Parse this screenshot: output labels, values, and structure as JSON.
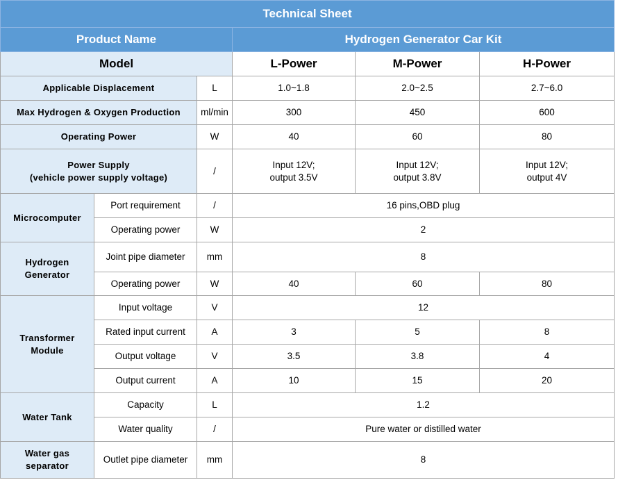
{
  "title": "Technical Sheet",
  "product": {
    "label": "Product Name",
    "value": "Hydrogen Generator Car Kit"
  },
  "model": {
    "label": "Model",
    "variants": [
      "L-Power",
      "M-Power",
      "H-Power"
    ]
  },
  "rows": [
    {
      "label": "Applicable Displacement",
      "unit": "L",
      "values": [
        "1.0~1.8",
        "2.0~2.5",
        "2.7~6.0"
      ]
    },
    {
      "label": "Max Hydrogen & Oxygen Production",
      "unit": "ml/min",
      "values": [
        "300",
        "450",
        "600"
      ]
    },
    {
      "label": "Operating Power",
      "unit": "W",
      "values": [
        "40",
        "60",
        "80"
      ]
    },
    {
      "label": "Power Supply\n(vehicle power supply voltage)",
      "unit": "/",
      "values": [
        "Input 12V;\noutput 3.5V",
        "Input 12V;\noutput 3.8V",
        "Input 12V;\noutput 4V"
      ]
    }
  ],
  "groups": [
    {
      "label": "Microcomputer",
      "items": [
        {
          "label": "Port requirement",
          "unit": "/",
          "values": [
            "16 pins,OBD plug"
          ]
        },
        {
          "label": "Operating power",
          "unit": "W",
          "values": [
            "2"
          ]
        }
      ]
    },
    {
      "label": "Hydrogen\nGenerator",
      "items": [
        {
          "label": "Joint pipe diameter",
          "unit": "mm",
          "values": [
            "8"
          ]
        },
        {
          "label": "Operating power",
          "unit": "W",
          "values": [
            "40",
            "60",
            "80"
          ]
        }
      ]
    },
    {
      "label": "Transformer\nModule",
      "items": [
        {
          "label": "Input voltage",
          "unit": "V",
          "values": [
            "12"
          ]
        },
        {
          "label": "Rated input current",
          "unit": "A",
          "values": [
            "3",
            "5",
            "8"
          ]
        },
        {
          "label": "Output voltage",
          "unit": "V",
          "values": [
            "3.5",
            "3.8",
            "4"
          ]
        },
        {
          "label": "Output current",
          "unit": "A",
          "values": [
            "10",
            "15",
            "20"
          ]
        }
      ]
    },
    {
      "label": "Water Tank",
      "items": [
        {
          "label": "Capacity",
          "unit": "L",
          "values": [
            "1.2"
          ]
        },
        {
          "label": "Water quality",
          "unit": "/",
          "values": [
            "Pure water or distilled water"
          ]
        }
      ]
    },
    {
      "label": "Water gas\nseparator",
      "items": [
        {
          "label": "Outlet pipe diameter",
          "unit": "mm",
          "values": [
            "8"
          ]
        }
      ]
    }
  ]
}
